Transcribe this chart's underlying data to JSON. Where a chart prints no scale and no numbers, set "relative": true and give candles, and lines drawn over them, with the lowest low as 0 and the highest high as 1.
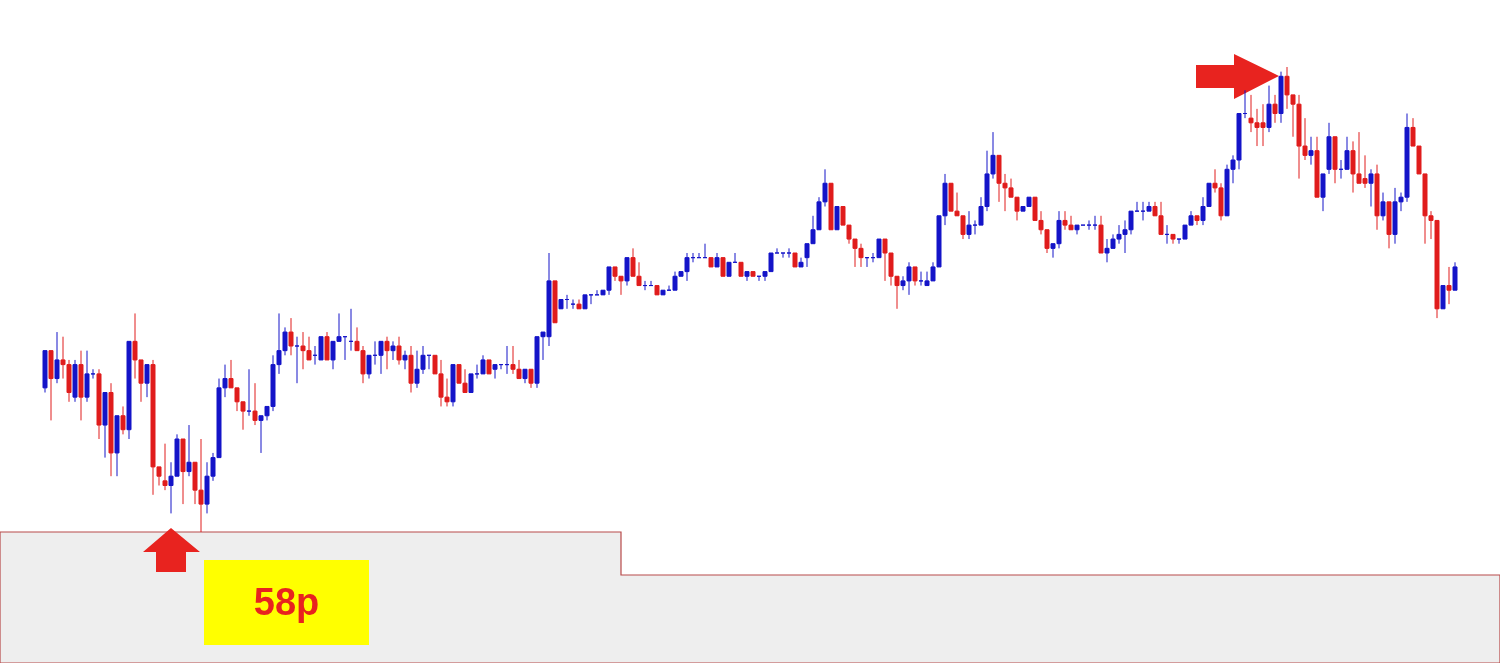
{
  "chart_data": {
    "type": "candlestick",
    "relative": true,
    "annotations": [
      "58p"
    ],
    "categories": [
      null,
      null,
      null,
      null,
      null,
      null,
      null,
      null,
      null,
      null,
      null,
      null,
      null,
      null,
      null,
      null,
      null,
      null,
      null,
      null,
      null,
      null,
      null,
      null,
      null,
      null,
      null,
      null,
      null,
      null,
      null,
      null,
      null,
      null,
      null,
      null,
      null,
      null,
      null,
      null,
      null,
      null,
      null,
      null,
      null,
      null,
      null,
      null,
      null,
      null,
      null,
      null,
      null,
      null,
      null,
      null,
      null,
      null,
      null,
      null,
      null,
      null,
      null,
      null,
      null,
      null,
      null,
      null,
      null,
      null,
      null,
      null,
      null,
      null,
      null,
      null,
      null,
      null,
      null,
      null,
      null,
      null,
      null,
      null,
      null,
      null,
      null,
      null,
      null,
      null,
      null,
      null,
      null,
      null,
      null,
      null,
      null,
      null,
      null,
      null,
      null,
      null,
      null,
      null,
      null,
      null,
      null,
      null,
      null,
      null,
      null,
      null,
      null,
      null,
      null,
      null,
      null,
      null,
      null,
      null,
      null,
      null,
      null,
      null,
      null,
      null,
      null,
      null,
      null,
      null,
      null,
      null,
      null,
      null,
      null,
      null,
      null,
      null,
      null,
      null,
      null,
      null,
      null,
      null,
      null,
      null,
      null,
      null,
      null,
      null,
      null,
      null,
      null,
      null,
      null,
      null,
      null,
      null,
      null,
      null,
      null,
      null,
      null,
      null,
      null,
      null,
      null,
      null,
      null,
      null,
      null,
      null,
      null,
      null,
      null,
      null,
      null,
      null,
      null,
      null,
      null,
      null,
      null,
      null,
      null,
      null,
      null,
      null,
      null,
      null,
      null,
      null,
      null,
      null,
      null,
      null,
      null,
      null,
      null,
      null,
      null,
      null,
      null,
      null,
      null,
      null,
      null,
      null,
      null,
      null,
      null,
      null,
      null,
      null,
      null,
      null,
      null,
      null,
      null,
      null,
      null,
      null,
      null,
      null,
      null,
      null,
      null,
      null,
      null,
      null,
      null,
      null,
      null,
      null,
      null,
      null
    ],
    "ohlc": [
      [
        0.31,
        0.39,
        0.3,
        0.39
      ],
      [
        0.39,
        0.39,
        0.24,
        0.33
      ],
      [
        0.33,
        0.43,
        0.32,
        0.37
      ],
      [
        0.37,
        0.42,
        0.33,
        0.36
      ],
      [
        0.36,
        0.37,
        0.28,
        0.3
      ],
      [
        0.29,
        0.37,
        0.28,
        0.36
      ],
      [
        0.36,
        0.39,
        0.24,
        0.29
      ],
      [
        0.29,
        0.39,
        0.28,
        0.34
      ],
      [
        0.34,
        0.35,
        0.33,
        0.34
      ],
      [
        0.34,
        0.35,
        0.2,
        0.23
      ],
      [
        0.23,
        0.3,
        0.16,
        0.3
      ],
      [
        0.3,
        0.32,
        0.12,
        0.17
      ],
      [
        0.17,
        0.25,
        0.12,
        0.25
      ],
      [
        0.25,
        0.27,
        0.21,
        0.22
      ],
      [
        0.22,
        0.41,
        0.2,
        0.41
      ],
      [
        0.41,
        0.47,
        0.33,
        0.37
      ],
      [
        0.37,
        0.37,
        0.28,
        0.32
      ],
      [
        0.32,
        0.36,
        0.29,
        0.36
      ],
      [
        0.36,
        0.37,
        0.08,
        0.14
      ],
      [
        0.14,
        0.14,
        0.1,
        0.12
      ],
      [
        0.11,
        0.19,
        0.09,
        0.1
      ],
      [
        0.1,
        0.15,
        0.04,
        0.12
      ],
      [
        0.12,
        0.21,
        0.12,
        0.2
      ],
      [
        0.2,
        0.2,
        0.06,
        0.13
      ],
      [
        0.13,
        0.23,
        0.12,
        0.15
      ],
      [
        0.15,
        0.15,
        0.06,
        0.09
      ],
      [
        0.09,
        0.2,
        0.0,
        0.06
      ],
      [
        0.06,
        0.15,
        0.04,
        0.12
      ],
      [
        0.12,
        0.17,
        0.11,
        0.16
      ],
      [
        0.16,
        0.33,
        0.16,
        0.31
      ],
      [
        0.31,
        0.36,
        0.29,
        0.33
      ],
      [
        0.33,
        0.37,
        0.31,
        0.31
      ],
      [
        0.31,
        0.31,
        0.26,
        0.28
      ],
      [
        0.28,
        0.28,
        0.22,
        0.26
      ],
      [
        0.26,
        0.35,
        0.25,
        0.26
      ],
      [
        0.26,
        0.32,
        0.23,
        0.24
      ],
      [
        0.24,
        0.25,
        0.17,
        0.25
      ],
      [
        0.25,
        0.27,
        0.24,
        0.27
      ],
      [
        0.27,
        0.38,
        0.26,
        0.36
      ],
      [
        0.36,
        0.47,
        0.34,
        0.39
      ],
      [
        0.39,
        0.44,
        0.38,
        0.43
      ],
      [
        0.43,
        0.46,
        0.38,
        0.4
      ],
      [
        0.4,
        0.42,
        0.32,
        0.4
      ],
      [
        0.4,
        0.43,
        0.35,
        0.39
      ],
      [
        0.39,
        0.42,
        0.37,
        0.37
      ],
      [
        0.38,
        0.4,
        0.36,
        0.38
      ],
      [
        0.37,
        0.42,
        0.37,
        0.42
      ],
      [
        0.42,
        0.43,
        0.37,
        0.37
      ],
      [
        0.37,
        0.41,
        0.35,
        0.41
      ],
      [
        0.41,
        0.47,
        0.41,
        0.42
      ],
      [
        0.42,
        0.42,
        0.37,
        0.42
      ],
      [
        0.41,
        0.48,
        0.39,
        0.41
      ],
      [
        0.41,
        0.44,
        0.39,
        0.39
      ],
      [
        0.39,
        0.4,
        0.32,
        0.34
      ],
      [
        0.34,
        0.38,
        0.33,
        0.38
      ],
      [
        0.38,
        0.41,
        0.36,
        0.38
      ],
      [
        0.38,
        0.41,
        0.34,
        0.41
      ],
      [
        0.41,
        0.42,
        0.35,
        0.39
      ],
      [
        0.39,
        0.41,
        0.37,
        0.4
      ],
      [
        0.4,
        0.42,
        0.36,
        0.37
      ],
      [
        0.37,
        0.39,
        0.35,
        0.38
      ],
      [
        0.38,
        0.4,
        0.3,
        0.32
      ],
      [
        0.32,
        0.39,
        0.31,
        0.35
      ],
      [
        0.35,
        0.4,
        0.34,
        0.38
      ],
      [
        0.38,
        0.38,
        0.35,
        0.38
      ],
      [
        0.38,
        0.38,
        0.34,
        0.34
      ],
      [
        0.34,
        0.37,
        0.27,
        0.29
      ],
      [
        0.29,
        0.33,
        0.27,
        0.28
      ],
      [
        0.28,
        0.36,
        0.27,
        0.36
      ],
      [
        0.36,
        0.36,
        0.32,
        0.32
      ],
      [
        0.32,
        0.35,
        0.3,
        0.3
      ],
      [
        0.3,
        0.34,
        0.3,
        0.34
      ],
      [
        0.34,
        0.36,
        0.33,
        0.34
      ],
      [
        0.34,
        0.38,
        0.34,
        0.37
      ],
      [
        0.37,
        0.37,
        0.34,
        0.34
      ],
      [
        0.35,
        0.36,
        0.33,
        0.36
      ],
      [
        0.36,
        0.36,
        0.35,
        0.36
      ],
      [
        0.36,
        0.4,
        0.34,
        0.36
      ],
      [
        0.36,
        0.4,
        0.34,
        0.35
      ],
      [
        0.35,
        0.37,
        0.33,
        0.33
      ],
      [
        0.33,
        0.35,
        0.32,
        0.35
      ],
      [
        0.35,
        0.35,
        0.31,
        0.32
      ],
      [
        0.32,
        0.42,
        0.31,
        0.42
      ],
      [
        0.42,
        0.43,
        0.37,
        0.43
      ],
      [
        0.42,
        0.6,
        0.4,
        0.54
      ],
      [
        0.54,
        0.54,
        0.45,
        0.45
      ],
      [
        0.48,
        0.5,
        0.48,
        0.5
      ],
      [
        0.5,
        0.51,
        0.48,
        0.5
      ],
      [
        0.49,
        0.5,
        0.48,
        0.49
      ],
      [
        0.49,
        0.5,
        0.48,
        0.48
      ],
      [
        0.48,
        0.51,
        0.48,
        0.51
      ],
      [
        0.51,
        0.51,
        0.49,
        0.51
      ],
      [
        0.51,
        0.52,
        0.51,
        0.51
      ],
      [
        0.51,
        0.52,
        0.51,
        0.52
      ],
      [
        0.52,
        0.57,
        0.51,
        0.57
      ],
      [
        0.57,
        0.57,
        0.54,
        0.55
      ],
      [
        0.55,
        0.55,
        0.51,
        0.54
      ],
      [
        0.54,
        0.59,
        0.53,
        0.59
      ],
      [
        0.59,
        0.61,
        0.55,
        0.55
      ],
      [
        0.55,
        0.58,
        0.53,
        0.53
      ],
      [
        0.53,
        0.54,
        0.52,
        0.53
      ],
      [
        0.53,
        0.54,
        0.53,
        0.53
      ],
      [
        0.53,
        0.53,
        0.51,
        0.51
      ],
      [
        0.51,
        0.52,
        0.51,
        0.52
      ],
      [
        0.52,
        0.53,
        0.52,
        0.52
      ],
      [
        0.52,
        0.56,
        0.52,
        0.55
      ],
      [
        0.55,
        0.56,
        0.55,
        0.56
      ],
      [
        0.56,
        0.6,
        0.54,
        0.59
      ],
      [
        0.59,
        0.6,
        0.58,
        0.59
      ],
      [
        0.59,
        0.6,
        0.59,
        0.59
      ],
      [
        0.59,
        0.62,
        0.59,
        0.59
      ],
      [
        0.59,
        0.59,
        0.57,
        0.57
      ],
      [
        0.57,
        0.6,
        0.57,
        0.59
      ],
      [
        0.59,
        0.59,
        0.55,
        0.55
      ],
      [
        0.55,
        0.58,
        0.55,
        0.58
      ],
      [
        0.58,
        0.6,
        0.58,
        0.58
      ],
      [
        0.58,
        0.58,
        0.55,
        0.55
      ],
      [
        0.55,
        0.56,
        0.54,
        0.56
      ],
      [
        0.56,
        0.56,
        0.55,
        0.55
      ],
      [
        0.55,
        0.55,
        0.54,
        0.55
      ],
      [
        0.55,
        0.56,
        0.54,
        0.56
      ],
      [
        0.56,
        0.6,
        0.56,
        0.6
      ],
      [
        0.6,
        0.61,
        0.6,
        0.6
      ],
      [
        0.6,
        0.6,
        0.59,
        0.6
      ],
      [
        0.6,
        0.61,
        0.59,
        0.6
      ],
      [
        0.6,
        0.6,
        0.57,
        0.57
      ],
      [
        0.57,
        0.59,
        0.57,
        0.58
      ],
      [
        0.59,
        0.62,
        0.57,
        0.62
      ],
      [
        0.62,
        0.68,
        0.62,
        0.65
      ],
      [
        0.65,
        0.72,
        0.65,
        0.71
      ],
      [
        0.71,
        0.78,
        0.7,
        0.75
      ],
      [
        0.75,
        0.75,
        0.65,
        0.65
      ],
      [
        0.65,
        0.7,
        0.65,
        0.7
      ],
      [
        0.7,
        0.7,
        0.66,
        0.66
      ],
      [
        0.66,
        0.66,
        0.62,
        0.63
      ],
      [
        0.63,
        0.63,
        0.57,
        0.61
      ],
      [
        0.61,
        0.62,
        0.57,
        0.59
      ],
      [
        0.59,
        0.59,
        0.57,
        0.59
      ],
      [
        0.59,
        0.6,
        0.58,
        0.59
      ],
      [
        0.59,
        0.63,
        0.59,
        0.63
      ],
      [
        0.63,
        0.63,
        0.54,
        0.6
      ],
      [
        0.6,
        0.6,
        0.53,
        0.55
      ],
      [
        0.55,
        0.55,
        0.48,
        0.53
      ],
      [
        0.53,
        0.55,
        0.52,
        0.54
      ],
      [
        0.54,
        0.58,
        0.51,
        0.57
      ],
      [
        0.57,
        0.57,
        0.53,
        0.54
      ],
      [
        0.54,
        0.56,
        0.53,
        0.54
      ],
      [
        0.53,
        0.56,
        0.53,
        0.54
      ],
      [
        0.54,
        0.58,
        0.54,
        0.57
      ],
      [
        0.57,
        0.68,
        0.57,
        0.68
      ],
      [
        0.68,
        0.77,
        0.66,
        0.75
      ],
      [
        0.75,
        0.75,
        0.69,
        0.69
      ],
      [
        0.69,
        0.73,
        0.68,
        0.68
      ],
      [
        0.68,
        0.68,
        0.63,
        0.64
      ],
      [
        0.64,
        0.69,
        0.63,
        0.66
      ],
      [
        0.66,
        0.67,
        0.64,
        0.66
      ],
      [
        0.66,
        0.72,
        0.66,
        0.7
      ],
      [
        0.7,
        0.82,
        0.69,
        0.77
      ],
      [
        0.77,
        0.86,
        0.76,
        0.81
      ],
      [
        0.81,
        0.81,
        0.71,
        0.75
      ],
      [
        0.75,
        0.77,
        0.69,
        0.74
      ],
      [
        0.74,
        0.76,
        0.72,
        0.72
      ],
      [
        0.72,
        0.72,
        0.67,
        0.69
      ],
      [
        0.69,
        0.7,
        0.69,
        0.7
      ],
      [
        0.7,
        0.72,
        0.7,
        0.72
      ],
      [
        0.72,
        0.72,
        0.67,
        0.67
      ],
      [
        0.67,
        0.69,
        0.64,
        0.65
      ],
      [
        0.65,
        0.65,
        0.6,
        0.61
      ],
      [
        0.61,
        0.62,
        0.59,
        0.62
      ],
      [
        0.62,
        0.69,
        0.61,
        0.67
      ],
      [
        0.67,
        0.69,
        0.65,
        0.66
      ],
      [
        0.66,
        0.68,
        0.65,
        0.65
      ],
      [
        0.65,
        0.66,
        0.64,
        0.66
      ],
      [
        0.66,
        0.66,
        0.66,
        0.66
      ],
      [
        0.66,
        0.67,
        0.65,
        0.66
      ],
      [
        0.66,
        0.68,
        0.65,
        0.66
      ],
      [
        0.66,
        0.68,
        0.6,
        0.6
      ],
      [
        0.6,
        0.63,
        0.58,
        0.61
      ],
      [
        0.61,
        0.64,
        0.61,
        0.63
      ],
      [
        0.63,
        0.66,
        0.62,
        0.64
      ],
      [
        0.64,
        0.67,
        0.6,
        0.65
      ],
      [
        0.65,
        0.69,
        0.64,
        0.69
      ],
      [
        0.69,
        0.71,
        0.69,
        0.69
      ],
      [
        0.69,
        0.71,
        0.67,
        0.69
      ],
      [
        0.69,
        0.71,
        0.69,
        0.7
      ],
      [
        0.7,
        0.71,
        0.68,
        0.68
      ],
      [
        0.68,
        0.71,
        0.64,
        0.64
      ],
      [
        0.64,
        0.66,
        0.62,
        0.64
      ],
      [
        0.64,
        0.64,
        0.62,
        0.63
      ],
      [
        0.63,
        0.63,
        0.62,
        0.63
      ],
      [
        0.63,
        0.66,
        0.63,
        0.66
      ],
      [
        0.66,
        0.69,
        0.66,
        0.68
      ],
      [
        0.68,
        0.68,
        0.66,
        0.67
      ],
      [
        0.67,
        0.72,
        0.66,
        0.7
      ],
      [
        0.7,
        0.75,
        0.7,
        0.75
      ],
      [
        0.75,
        0.78,
        0.73,
        0.74
      ],
      [
        0.74,
        0.75,
        0.67,
        0.68
      ],
      [
        0.68,
        0.79,
        0.68,
        0.78
      ],
      [
        0.78,
        0.81,
        0.75,
        0.8
      ],
      [
        0.8,
        0.9,
        0.78,
        0.9
      ],
      [
        0.9,
        0.95,
        0.89,
        0.9
      ],
      [
        0.89,
        0.94,
        0.86,
        0.88
      ],
      [
        0.88,
        0.91,
        0.83,
        0.87
      ],
      [
        0.88,
        0.92,
        0.83,
        0.87
      ],
      [
        0.87,
        0.96,
        0.86,
        0.92
      ],
      [
        0.92,
        0.94,
        0.88,
        0.9
      ],
      [
        0.9,
        0.99,
        0.88,
        0.98
      ],
      [
        0.98,
        1.0,
        0.91,
        0.94
      ],
      [
        0.94,
        0.94,
        0.85,
        0.92
      ],
      [
        0.92,
        0.94,
        0.76,
        0.83
      ],
      [
        0.83,
        0.89,
        0.8,
        0.81
      ],
      [
        0.81,
        0.85,
        0.79,
        0.82
      ],
      [
        0.82,
        0.85,
        0.72,
        0.72
      ],
      [
        0.72,
        0.77,
        0.69,
        0.77
      ],
      [
        0.78,
        0.88,
        0.77,
        0.85
      ],
      [
        0.85,
        0.85,
        0.75,
        0.78
      ],
      [
        0.78,
        0.8,
        0.76,
        0.78
      ],
      [
        0.78,
        0.85,
        0.78,
        0.82
      ],
      [
        0.82,
        0.84,
        0.73,
        0.77
      ],
      [
        0.77,
        0.86,
        0.75,
        0.75
      ],
      [
        0.76,
        0.81,
        0.74,
        0.75
      ],
      [
        0.75,
        0.78,
        0.7,
        0.77
      ],
      [
        0.77,
        0.79,
        0.65,
        0.68
      ],
      [
        0.68,
        0.73,
        0.67,
        0.71
      ],
      [
        0.71,
        0.71,
        0.61,
        0.64
      ],
      [
        0.64,
        0.74,
        0.62,
        0.71
      ],
      [
        0.71,
        0.73,
        0.69,
        0.72
      ],
      [
        0.72,
        0.9,
        0.71,
        0.87
      ],
      [
        0.87,
        0.89,
        0.83,
        0.83
      ],
      [
        0.83,
        0.83,
        0.77,
        0.77
      ],
      [
        0.77,
        0.77,
        0.62,
        0.68
      ],
      [
        0.68,
        0.69,
        0.63,
        0.67
      ],
      [
        0.67,
        0.67,
        0.46,
        0.48
      ],
      [
        0.48,
        0.53,
        0.48,
        0.53
      ],
      [
        0.53,
        0.57,
        0.49,
        0.52
      ],
      [
        0.52,
        0.58,
        0.52,
        0.57
      ]
    ]
  }
}
